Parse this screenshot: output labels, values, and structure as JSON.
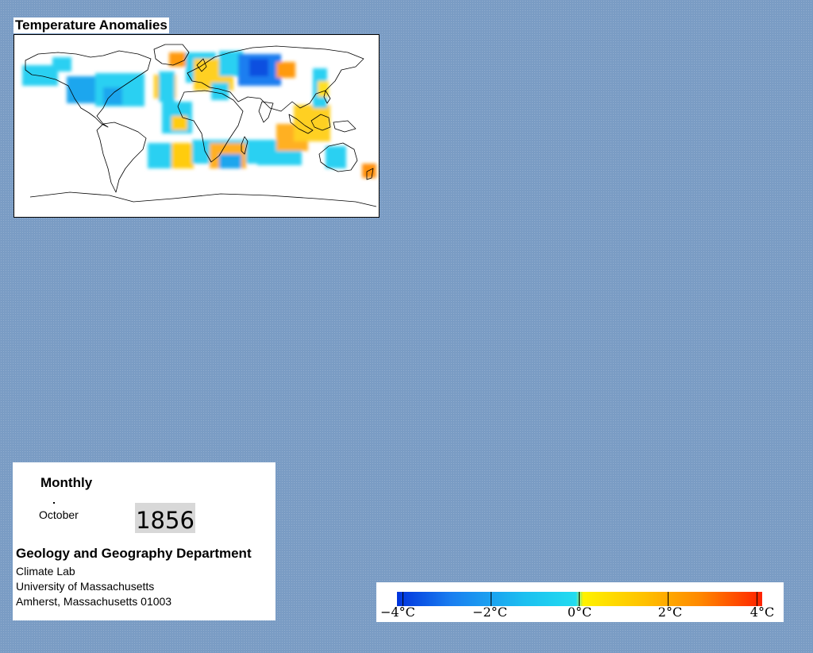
{
  "map": {
    "title": "Temperature Anomalies",
    "anomaly_cells": [
      {
        "lon": -150,
        "lat": 52,
        "anomaly": -0.5
      },
      {
        "lon": -120,
        "lat": 52,
        "anomaly": -1.2
      },
      {
        "lon": -65,
        "lat": 40,
        "anomaly": -0.8
      },
      {
        "lon": -35,
        "lat": 40,
        "anomaly": 1.2
      },
      {
        "lon": -20,
        "lat": 60,
        "anomaly": 2.0
      },
      {
        "lon": 0,
        "lat": 55,
        "anomaly": 0.8
      },
      {
        "lon": 35,
        "lat": 55,
        "anomaly": -3.5
      },
      {
        "lon": 65,
        "lat": 50,
        "anomaly": 1.8
      },
      {
        "lon": -15,
        "lat": 0,
        "anomaly": 0.5
      },
      {
        "lon": -10,
        "lat": -30,
        "anomaly": 0.8
      },
      {
        "lon": 35,
        "lat": -30,
        "anomaly": 0.5
      },
      {
        "lon": 100,
        "lat": 0,
        "anomaly": 0.8
      },
      {
        "lon": 80,
        "lat": -5,
        "anomaly": 1.5
      },
      {
        "lon": 175,
        "lat": -40,
        "anomaly": 2.5
      }
    ]
  },
  "info": {
    "period": "Monthly",
    "month": "October",
    "year": "1856",
    "department": "Geology and Geography Department",
    "lab": "Climate Lab",
    "university": "University of Massachusetts",
    "address": "Amherst, Massachusetts 01003"
  },
  "legend": {
    "labels": [
      "−4°C",
      "−2°C",
      "0°C",
      "2°C",
      "4°C"
    ],
    "colors": {
      "min": "#0033dd",
      "zero": "#22dcf0",
      "max": "#ff2200"
    }
  }
}
